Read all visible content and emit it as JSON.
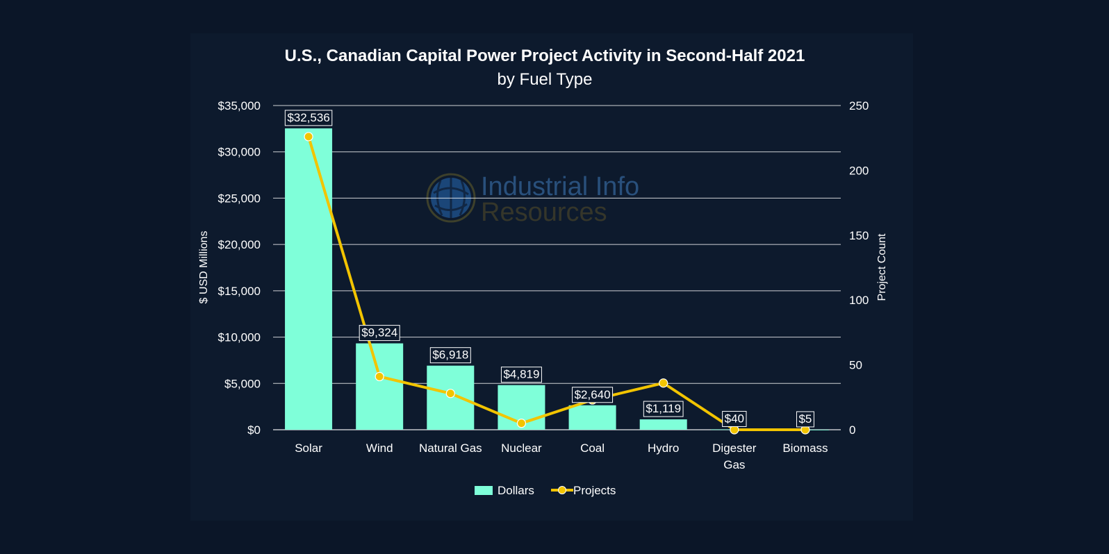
{
  "colors": {
    "background": "#0b1628",
    "bar": "#7fffd9",
    "line": "#f2c400",
    "gridline": "#ffffff"
  },
  "watermark": {
    "line1": "Industrial Info",
    "line2": "Resources",
    "icon": "globe-logo-icon"
  },
  "chart_data": {
    "type": "bar",
    "title": "U.S., Canadian Capital Power Project Activity in Second-Half 2021",
    "subtitle": "by Fuel Type",
    "categories": [
      [
        "Solar"
      ],
      [
        "Wind"
      ],
      [
        "Natural Gas"
      ],
      [
        "Nuclear"
      ],
      [
        "Coal"
      ],
      [
        "Hydro"
      ],
      [
        "Digester",
        "Gas"
      ],
      [
        "Biomass"
      ]
    ],
    "ylabel": "$ USD Millions",
    "y2label": "Project Count",
    "ylim": [
      0,
      35000
    ],
    "y2lim": [
      0,
      250
    ],
    "yticks": [
      "$0",
      "$5,000",
      "$10,000",
      "$15,000",
      "$20,000",
      "$25,000",
      "$30,000",
      "$35,000"
    ],
    "y2ticks": [
      "0",
      "50",
      "100",
      "150",
      "200",
      "250"
    ],
    "grid": true,
    "legend_position": "bottom",
    "series": [
      {
        "name": "Dollars",
        "type": "bar",
        "axis": "left",
        "values": [
          32536,
          9324,
          6918,
          4819,
          2640,
          1119,
          40,
          5
        ],
        "labels": [
          "$32,536",
          "$9,324",
          "$6,918",
          "$4,819",
          "$2,640",
          "$1,119",
          "$40",
          "$5"
        ]
      },
      {
        "name": "Projects",
        "type": "line",
        "axis": "right",
        "values": [
          226,
          41,
          28,
          5,
          23,
          36,
          0,
          0
        ]
      }
    ]
  }
}
